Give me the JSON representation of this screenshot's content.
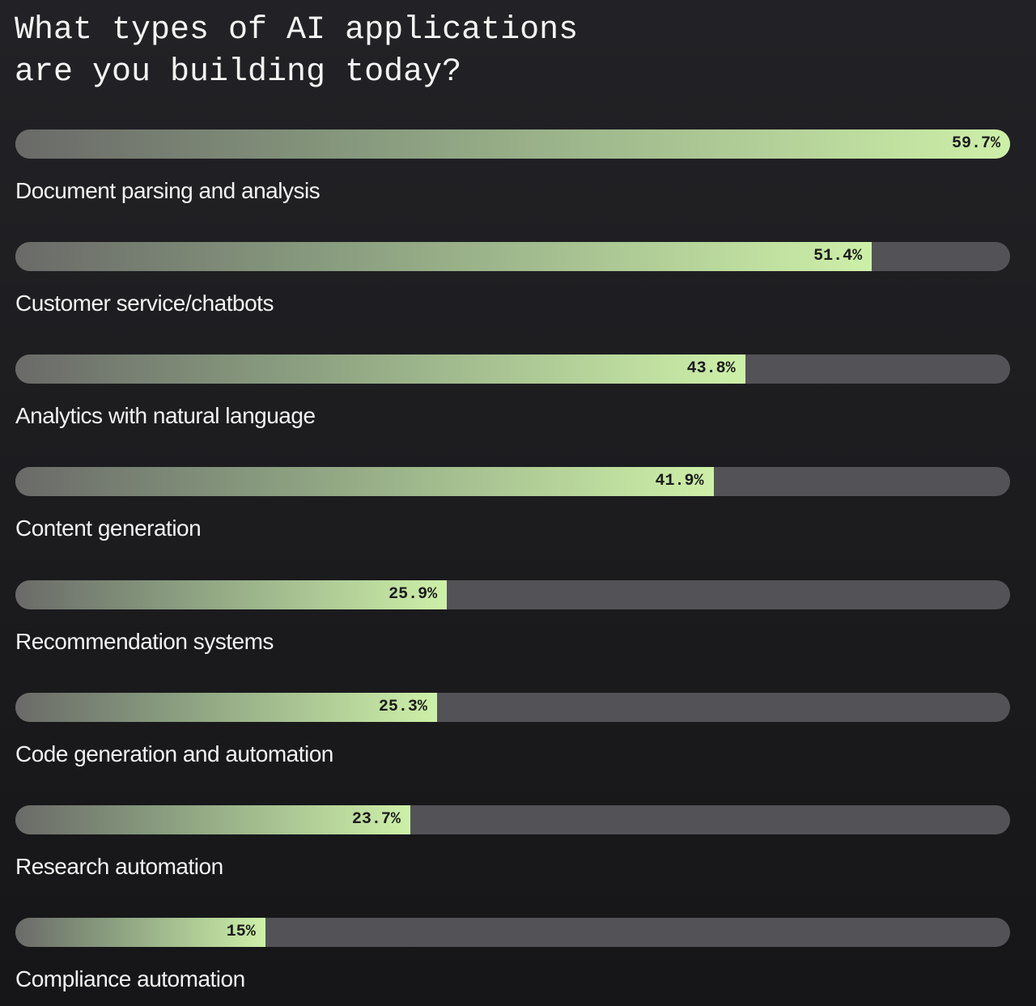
{
  "chart_data": {
    "type": "bar",
    "orientation": "horizontal",
    "title": "What types of AI applications are you building today?",
    "categories": [
      "Document parsing and analysis",
      "Customer service/chatbots",
      "Analytics with natural language",
      "Content generation",
      "Recommendation systems",
      "Code generation and automation",
      "Research automation",
      "Compliance automation"
    ],
    "values": [
      59.7,
      51.4,
      43.8,
      41.9,
      25.9,
      25.3,
      23.7,
      15
    ],
    "value_labels": [
      "59.7%",
      "51.4%",
      "43.8%",
      "41.9%",
      "25.9%",
      "25.3%",
      "23.7%",
      "15%"
    ],
    "color": "#cdf0a8",
    "track_color": "#535257"
  }
}
